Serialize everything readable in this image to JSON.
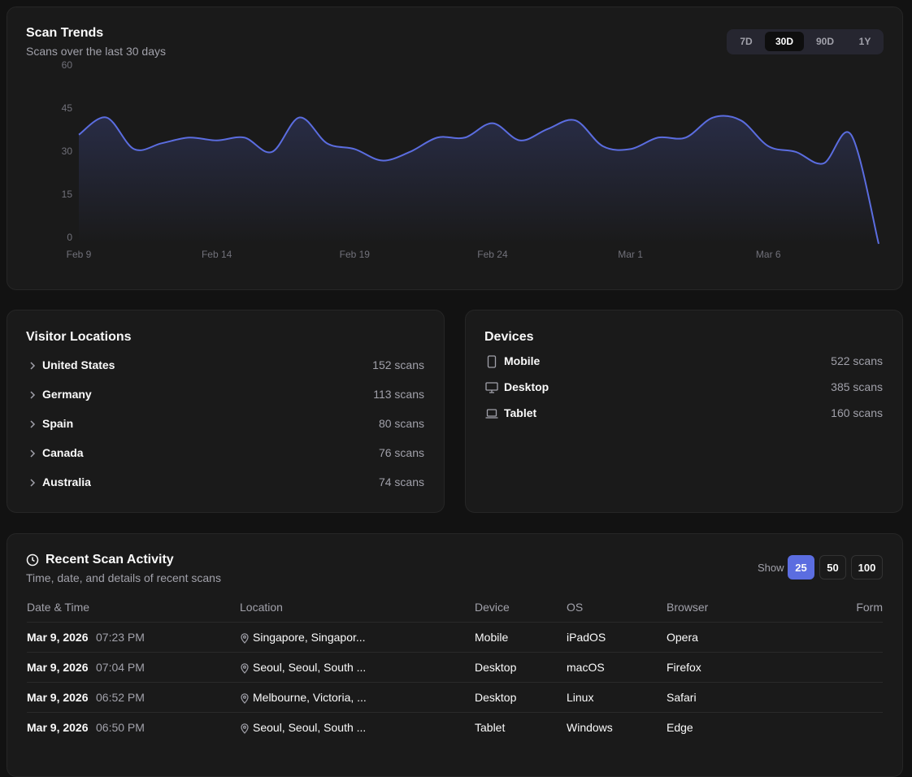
{
  "chart_card": {
    "title": "Scan Trends",
    "subtitle": "Scans over the last 30 days",
    "ranges": [
      {
        "label": "7D"
      },
      {
        "label": "30D",
        "selected": true
      },
      {
        "label": "90D"
      },
      {
        "label": "1Y"
      }
    ]
  },
  "chart_data": {
    "type": "line",
    "color": "#5b6de0",
    "categories": [
      "Feb 9",
      null,
      null,
      null,
      null,
      "Feb 14",
      null,
      null,
      null,
      null,
      "Feb 19",
      null,
      null,
      null,
      null,
      "Feb 24",
      null,
      null,
      null,
      null,
      "Mar 1",
      null,
      null,
      null,
      null,
      "Mar 6",
      null,
      null,
      null,
      null
    ],
    "values": [
      38,
      44,
      33,
      35,
      37,
      36,
      37,
      32,
      44,
      35,
      33,
      29,
      32,
      37,
      37,
      42,
      36,
      40,
      43,
      34,
      33,
      37,
      37,
      44,
      43,
      34,
      32,
      28,
      38,
      0
    ],
    "ylim": [
      0,
      60
    ],
    "yticks": [
      0,
      15,
      30,
      45,
      60
    ]
  },
  "locations": {
    "title": "Visitor Locations",
    "items": [
      {
        "name": "United States",
        "count": "152 scans"
      },
      {
        "name": "Germany",
        "count": "113 scans"
      },
      {
        "name": "Spain",
        "count": "80 scans"
      },
      {
        "name": "Canada",
        "count": "76 scans"
      },
      {
        "name": "Australia",
        "count": "74 scans"
      }
    ]
  },
  "devices": {
    "title": "Devices",
    "items": [
      {
        "name": "Mobile",
        "count": "522 scans"
      },
      {
        "name": "Desktop",
        "count": "385 scans"
      },
      {
        "name": "Tablet",
        "count": "160 scans"
      }
    ]
  },
  "activity": {
    "title": "Recent Scan Activity",
    "subtitle": "Time, date, and details of recent scans",
    "show_label": "Show",
    "page_sizes": [
      {
        "label": "25",
        "selected": true
      },
      {
        "label": "50"
      },
      {
        "label": "100"
      }
    ],
    "columns": [
      "Date & Time",
      "Location",
      "Device",
      "OS",
      "Browser",
      "Form"
    ],
    "rows": [
      {
        "date": "Mar 9, 2026",
        "time": "07:23 PM",
        "location": "Singapore, Singapor...",
        "device": "Mobile",
        "os": "iPadOS",
        "browser": "Opera"
      },
      {
        "date": "Mar 9, 2026",
        "time": "07:04 PM",
        "location": "Seoul, Seoul, South ...",
        "device": "Desktop",
        "os": "macOS",
        "browser": "Firefox"
      },
      {
        "date": "Mar 9, 2026",
        "time": "06:52 PM",
        "location": "Melbourne, Victoria, ...",
        "device": "Desktop",
        "os": "Linux",
        "browser": "Safari"
      },
      {
        "date": "Mar 9, 2026",
        "time": "06:50 PM",
        "location": "Seoul, Seoul, South ...",
        "device": "Tablet",
        "os": "Windows",
        "browser": "Edge"
      }
    ]
  }
}
